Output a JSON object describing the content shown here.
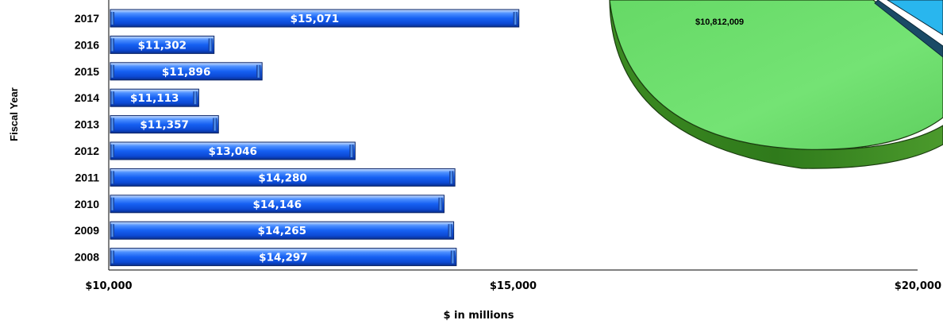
{
  "chart_data": [
    {
      "type": "bar",
      "orientation": "horizontal",
      "categories": [
        "2017",
        "2016",
        "2015",
        "2014",
        "2013",
        "2012",
        "2011",
        "2010",
        "2009",
        "2008"
      ],
      "values": [
        15071,
        11302,
        11896,
        11113,
        11357,
        13046,
        14280,
        14146,
        14265,
        14297
      ],
      "value_labels": [
        "$15,071",
        "$11,302",
        "$11,896",
        "$11,113",
        "$11,357",
        "$13,046",
        "$14,280",
        "$14,146",
        "$14,265",
        "$14,297"
      ],
      "xlabel": "$ in millions",
      "ylabel": "Fiscal Year",
      "xlim": [
        10000,
        20000
      ],
      "xticks": [
        10000,
        15000,
        20000
      ],
      "xtick_labels": [
        "$10,000",
        "$15,000",
        "$20,000"
      ],
      "grid": false,
      "bar_color": "#1a66f0"
    },
    {
      "type": "pie",
      "partially_visible": true,
      "slices": [
        {
          "label": "$10,812,009",
          "color": "#6fdd6f"
        },
        {
          "label": "",
          "color": "#29b6ee"
        }
      ]
    }
  ]
}
